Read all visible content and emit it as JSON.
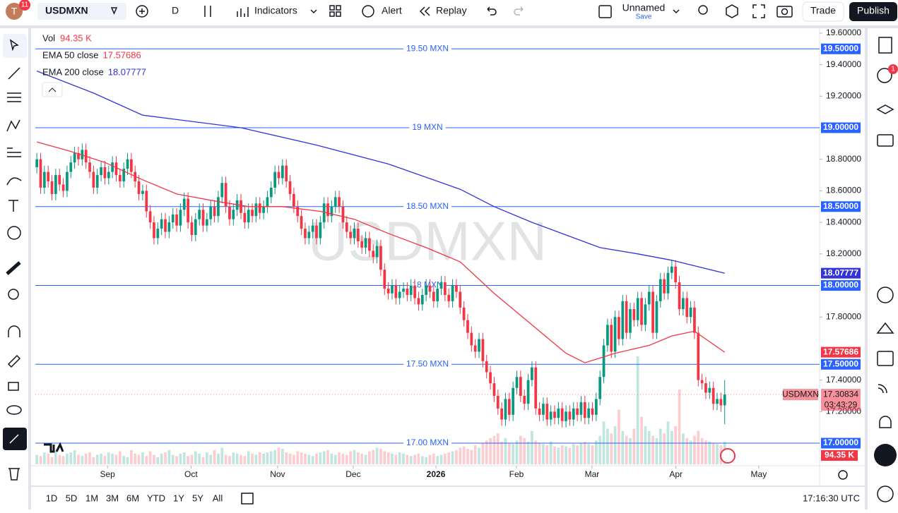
{
  "ui": {
    "avatar": "T",
    "badge": "11",
    "symbol": "USDMXN",
    "interval": "D",
    "indicators": "Indicators",
    "alert": "Alert",
    "replay": "Replay",
    "layout_name": "Unnamed",
    "save": "Save",
    "trade": "Trade",
    "publish": "Publish",
    "alert_badge": "1",
    "ranges": [
      "1D",
      "5D",
      "1M",
      "3M",
      "6M",
      "YTD",
      "1Y",
      "5Y",
      "All"
    ],
    "clock": "17:16:30 UTC",
    "countdown": "03:43:29"
  },
  "chart_data": {
    "type": "candlestick",
    "title": "USDMXN",
    "up_color": "#089981",
    "down_color": "#f23645",
    "open": [
      18.75,
      18.8,
      18.62,
      18.72,
      18.66,
      18.58,
      18.7,
      18.64,
      18.6,
      18.72,
      18.78,
      18.84,
      18.8,
      18.86,
      18.78,
      18.72,
      18.62,
      18.7,
      18.75,
      18.68,
      18.72,
      18.78,
      18.7,
      18.66,
      18.74,
      18.8,
      18.72,
      18.66,
      18.58,
      18.6,
      18.47,
      18.4,
      18.3,
      18.36,
      18.42,
      18.34,
      18.4,
      18.45,
      18.38,
      18.48,
      18.55,
      18.4,
      18.32,
      18.42,
      18.48,
      18.38,
      18.42,
      18.5,
      18.44,
      18.56,
      18.65,
      18.5,
      18.42,
      18.48,
      18.54,
      18.46,
      18.4,
      18.48,
      18.44,
      18.52,
      18.46,
      18.5,
      18.56,
      18.62,
      18.72,
      18.68,
      18.76,
      18.66,
      18.58,
      18.5,
      18.44,
      18.36,
      18.3,
      18.34,
      18.38,
      18.3,
      18.4,
      18.52,
      18.44,
      18.5,
      18.56,
      18.5,
      18.4,
      18.34,
      18.3,
      18.36,
      18.28,
      18.24,
      18.3,
      18.22,
      18.18,
      18.25,
      18.1,
      17.98,
      17.95,
      18.0,
      17.92,
      17.96,
      17.98,
      17.94,
      18.0,
      17.92,
      17.88,
      17.94,
      18.0,
      17.96,
      17.9,
      17.98,
      18.02,
      17.94,
      17.9,
      18.0,
      17.96,
      17.86,
      17.78,
      17.7,
      17.62,
      17.58,
      17.66,
      17.52,
      17.45,
      17.38,
      17.3,
      17.22,
      17.15,
      17.28,
      17.18,
      17.35,
      17.42,
      17.3,
      17.25,
      17.4,
      17.48,
      17.22,
      17.18,
      17.25,
      17.15,
      17.2,
      17.16,
      17.22,
      17.14,
      17.2,
      17.15,
      17.22,
      17.18,
      17.26,
      17.16,
      17.22,
      17.18,
      17.28,
      17.42,
      17.62,
      17.75,
      17.58,
      17.8,
      17.66,
      17.9,
      17.7,
      17.85,
      17.78,
      17.92,
      17.75,
      17.88,
      17.96,
      17.7,
      17.9,
      18.04,
      17.95,
      18.08,
      18.12,
      18.02,
      17.85,
      17.92,
      17.8,
      17.86,
      17.7,
      17.4,
      17.38,
      17.32,
      17.35,
      17.25,
      17.28,
      17.24
    ],
    "high": [
      18.84,
      18.84,
      18.76,
      18.76,
      18.7,
      18.74,
      18.74,
      18.68,
      18.76,
      18.82,
      18.88,
      18.88,
      18.9,
      18.9,
      18.82,
      18.76,
      18.74,
      18.79,
      18.79,
      18.76,
      18.82,
      18.82,
      18.74,
      18.78,
      18.84,
      18.84,
      18.76,
      18.7,
      18.64,
      18.64,
      18.51,
      18.44,
      18.4,
      18.46,
      18.46,
      18.44,
      18.49,
      18.49,
      18.52,
      18.59,
      18.59,
      18.44,
      18.46,
      18.52,
      18.52,
      18.46,
      18.54,
      18.54,
      18.6,
      18.69,
      18.69,
      18.54,
      18.52,
      18.58,
      18.58,
      18.5,
      18.52,
      18.52,
      18.56,
      18.56,
      18.54,
      18.6,
      18.66,
      18.76,
      18.76,
      18.8,
      18.8,
      18.7,
      18.62,
      18.54,
      18.48,
      18.4,
      18.38,
      18.42,
      18.42,
      18.44,
      18.56,
      18.56,
      18.54,
      18.6,
      18.6,
      18.54,
      18.44,
      18.38,
      18.4,
      18.4,
      18.32,
      18.34,
      18.34,
      18.26,
      18.29,
      18.29,
      18.14,
      18.02,
      18.04,
      18.04,
      18.0,
      18.02,
      18.02,
      18.04,
      18.04,
      17.96,
      17.98,
      18.04,
      18.04,
      18.0,
      18.02,
      18.06,
      18.06,
      17.98,
      18.04,
      18.04,
      18.0,
      17.9,
      17.82,
      17.74,
      17.66,
      17.7,
      17.7,
      17.56,
      17.49,
      17.42,
      17.34,
      17.26,
      17.32,
      17.32,
      17.39,
      17.46,
      17.46,
      17.34,
      17.44,
      17.52,
      17.52,
      17.26,
      17.29,
      17.29,
      17.24,
      17.24,
      17.26,
      17.26,
      17.24,
      17.24,
      17.26,
      17.26,
      17.3,
      17.3,
      17.26,
      17.26,
      17.32,
      17.46,
      17.66,
      17.79,
      17.79,
      17.84,
      17.84,
      17.94,
      17.94,
      17.89,
      17.89,
      17.96,
      17.96,
      17.92,
      18.0,
      18.0,
      17.94,
      18.08,
      18.08,
      18.12,
      18.16,
      18.16,
      18.06,
      17.96,
      17.96,
      17.9,
      17.9,
      17.74,
      17.44,
      17.42,
      17.39,
      17.39,
      17.32,
      17.32,
      17.4
    ],
    "low": [
      18.71,
      18.58,
      18.58,
      18.62,
      18.54,
      18.54,
      18.6,
      18.56,
      18.56,
      18.68,
      18.74,
      18.76,
      18.76,
      18.74,
      18.68,
      18.58,
      18.58,
      18.66,
      18.64,
      18.64,
      18.68,
      18.66,
      18.62,
      18.62,
      18.7,
      18.68,
      18.62,
      18.54,
      18.54,
      18.43,
      18.36,
      18.26,
      18.26,
      18.32,
      18.3,
      18.3,
      18.36,
      18.34,
      18.34,
      18.44,
      18.36,
      18.28,
      18.28,
      18.38,
      18.34,
      18.34,
      18.38,
      18.4,
      18.4,
      18.52,
      18.46,
      18.38,
      18.38,
      18.44,
      18.42,
      18.36,
      18.36,
      18.4,
      18.4,
      18.42,
      18.42,
      18.46,
      18.52,
      18.58,
      18.64,
      18.64,
      18.62,
      18.54,
      18.46,
      18.4,
      18.32,
      18.26,
      18.26,
      18.3,
      18.26,
      18.26,
      18.36,
      18.4,
      18.4,
      18.46,
      18.46,
      18.36,
      18.3,
      18.26,
      18.26,
      18.24,
      18.2,
      18.2,
      18.18,
      18.14,
      18.14,
      18.06,
      17.94,
      17.91,
      17.91,
      17.88,
      17.88,
      17.92,
      17.9,
      17.9,
      17.88,
      17.84,
      17.84,
      17.9,
      17.92,
      17.86,
      17.86,
      17.94,
      17.9,
      17.86,
      17.86,
      17.92,
      17.82,
      17.74,
      17.66,
      17.58,
      17.54,
      17.54,
      17.48,
      17.41,
      17.34,
      17.26,
      17.18,
      17.11,
      17.11,
      17.14,
      17.14,
      17.31,
      17.26,
      17.21,
      17.21,
      17.36,
      17.18,
      17.14,
      17.14,
      17.11,
      17.11,
      17.12,
      17.12,
      17.1,
      17.1,
      17.11,
      17.11,
      17.14,
      17.14,
      17.12,
      17.12,
      17.14,
      17.14,
      17.24,
      17.38,
      17.58,
      17.54,
      17.54,
      17.62,
      17.62,
      17.66,
      17.66,
      17.74,
      17.74,
      17.71,
      17.71,
      17.84,
      17.66,
      17.66,
      17.86,
      17.91,
      17.91,
      18.04,
      17.98,
      17.81,
      17.81,
      17.76,
      17.76,
      17.66,
      17.36,
      17.34,
      17.28,
      17.28,
      17.21,
      17.21,
      17.2,
      17.12
    ],
    "close": [
      18.8,
      18.62,
      18.72,
      18.66,
      18.58,
      18.7,
      18.64,
      18.6,
      18.72,
      18.78,
      18.84,
      18.8,
      18.86,
      18.78,
      18.72,
      18.62,
      18.7,
      18.75,
      18.68,
      18.72,
      18.78,
      18.7,
      18.66,
      18.74,
      18.8,
      18.72,
      18.66,
      18.58,
      18.6,
      18.47,
      18.4,
      18.3,
      18.36,
      18.42,
      18.34,
      18.4,
      18.45,
      18.38,
      18.48,
      18.55,
      18.4,
      18.32,
      18.42,
      18.48,
      18.38,
      18.42,
      18.5,
      18.44,
      18.56,
      18.65,
      18.5,
      18.42,
      18.48,
      18.54,
      18.46,
      18.4,
      18.48,
      18.44,
      18.52,
      18.46,
      18.5,
      18.56,
      18.62,
      18.72,
      18.68,
      18.76,
      18.66,
      18.58,
      18.5,
      18.44,
      18.36,
      18.3,
      18.34,
      18.38,
      18.3,
      18.4,
      18.52,
      18.44,
      18.5,
      18.56,
      18.5,
      18.4,
      18.34,
      18.3,
      18.36,
      18.28,
      18.24,
      18.3,
      18.22,
      18.18,
      18.25,
      18.1,
      17.98,
      17.95,
      18.0,
      17.92,
      17.96,
      17.98,
      17.94,
      18.0,
      17.92,
      17.88,
      17.94,
      18.0,
      17.96,
      17.9,
      17.98,
      18.02,
      17.94,
      17.9,
      18.0,
      17.96,
      17.86,
      17.78,
      17.7,
      17.62,
      17.58,
      17.66,
      17.52,
      17.45,
      17.38,
      17.3,
      17.22,
      17.15,
      17.28,
      17.18,
      17.35,
      17.42,
      17.3,
      17.25,
      17.4,
      17.48,
      17.22,
      17.18,
      17.25,
      17.15,
      17.2,
      17.16,
      17.22,
      17.14,
      17.2,
      17.15,
      17.22,
      17.18,
      17.26,
      17.16,
      17.22,
      17.18,
      17.28,
      17.42,
      17.62,
      17.75,
      17.58,
      17.8,
      17.66,
      17.9,
      17.7,
      17.85,
      17.78,
      17.92,
      17.75,
      17.88,
      17.96,
      17.7,
      17.9,
      18.04,
      17.95,
      18.08,
      18.12,
      18.02,
      17.85,
      17.92,
      17.8,
      17.86,
      17.7,
      17.4,
      17.38,
      17.32,
      17.35,
      17.25,
      17.28,
      17.24,
      17.30834
    ],
    "xlim": [
      -0.4,
      207.1
    ],
    "xticks": [
      {
        "value": 18.7,
        "label": "Sep"
      },
      {
        "value": 40.8,
        "label": "Oct"
      },
      {
        "value": 63.7,
        "label": "Nov"
      },
      {
        "value": 83.7,
        "label": "Dec"
      },
      {
        "value": 105.6,
        "label": "2026"
      },
      {
        "value": 126.9,
        "label": "Feb"
      },
      {
        "value": 146.9,
        "label": "Mar"
      },
      {
        "value": 169.1,
        "label": "Apr"
      },
      {
        "value": 191.0,
        "label": "May"
      }
    ],
    "ylim": [
      16.857,
      19.631
    ],
    "yticks": [
      {
        "value": 19.6,
        "label": "19.60000"
      },
      {
        "value": 19.4,
        "label": "19.40000"
      },
      {
        "value": 19.2,
        "label": "19.20000"
      },
      {
        "value": 18.8,
        "label": "18.80000"
      },
      {
        "value": 18.6,
        "label": "18.60000"
      },
      {
        "value": 18.4,
        "label": "18.40000"
      },
      {
        "value": 18.2,
        "label": "18.20000"
      },
      {
        "value": 17.8,
        "label": "17.80000"
      },
      {
        "value": 17.4,
        "label": "17.40000"
      },
      {
        "value": 17.2,
        "label": "17.20000"
      }
    ],
    "level_color": "#2962ff",
    "levels": [
      {
        "value": 19.5,
        "name": "19.50 MXN",
        "label": "19.50000"
      },
      {
        "value": 19.0,
        "name": "19 MXN",
        "label": "19.00000"
      },
      {
        "value": 18.5,
        "name": "18.50 MXN",
        "label": "18.50000"
      },
      {
        "value": 18.0,
        "name": "18 MXN",
        "label": "18.00000"
      },
      {
        "value": 17.5,
        "name": "17.50 MXN",
        "label": "17.50000"
      },
      {
        "value": 17.0,
        "name": "17.00 MXN",
        "label": "17.00000"
      }
    ],
    "indicators": [
      {
        "name": "EMA 50 close",
        "color": "#f23645",
        "x": [
          0,
          9,
          18,
          28,
          37,
          46,
          56,
          65,
          75,
          84,
          93,
          103,
          112,
          121,
          131,
          140,
          145,
          153,
          162,
          168,
          174,
          182
        ],
        "values": [
          18.91,
          18.85,
          18.78,
          18.67,
          18.58,
          18.54,
          18.5,
          18.5,
          18.47,
          18.42,
          18.33,
          18.24,
          18.15,
          17.95,
          17.75,
          17.57,
          17.51,
          17.57,
          17.62,
          17.68,
          17.71,
          17.57686
        ]
      },
      {
        "name": "EMA 200 close",
        "color": "#3333d6",
        "x": [
          0,
          15,
          28,
          54,
          74,
          93,
          112,
          121,
          131,
          140,
          149,
          159,
          168,
          182
        ],
        "values": [
          19.36,
          19.22,
          19.08,
          19.0,
          18.89,
          18.77,
          18.61,
          18.5,
          18.4,
          18.32,
          18.24,
          18.2,
          18.16,
          18.07777
        ]
      }
    ],
    "volume": {
      "name": "Vol",
      "value_label": "94.35 K",
      "values": [
        40,
        35,
        50,
        45,
        30,
        55,
        40,
        35,
        45,
        50,
        60,
        40,
        35,
        45,
        50,
        30,
        40,
        45,
        35,
        50,
        45,
        40,
        55,
        35,
        30,
        60,
        45,
        40,
        50,
        35,
        55,
        40,
        30,
        45,
        50,
        60,
        40,
        35,
        45,
        50,
        35,
        40,
        55,
        45,
        30,
        50,
        40,
        60,
        45,
        70,
        40,
        35,
        50,
        45,
        40,
        35,
        55,
        45,
        40,
        50,
        45,
        50,
        55,
        60,
        70,
        65,
        50,
        45,
        40,
        55,
        50,
        45,
        40,
        35,
        45,
        50,
        55,
        60,
        45,
        40,
        50,
        45,
        40,
        55,
        60,
        50,
        45,
        40,
        55,
        60,
        70,
        65,
        55,
        50,
        45,
        40,
        50,
        45,
        40,
        35,
        40,
        45,
        35,
        30,
        40,
        45,
        35,
        40,
        45,
        50,
        55,
        60,
        70,
        75,
        65,
        60,
        80,
        70,
        90,
        100,
        110,
        120,
        130,
        95,
        110,
        90,
        85,
        100,
        120,
        110,
        95,
        140,
        100,
        90,
        85,
        80,
        95,
        75,
        70,
        80,
        75,
        70,
        85,
        80,
        90,
        95,
        85,
        80,
        100,
        120,
        180,
        150,
        130,
        160,
        230,
        140,
        120,
        110,
        150,
        454,
        200,
        160,
        140,
        120,
        110,
        150,
        130,
        180,
        140,
        160,
        315,
        130,
        110,
        100,
        120,
        140,
        110,
        100,
        95,
        90,
        85,
        80,
        94.35
      ]
    }
  }
}
